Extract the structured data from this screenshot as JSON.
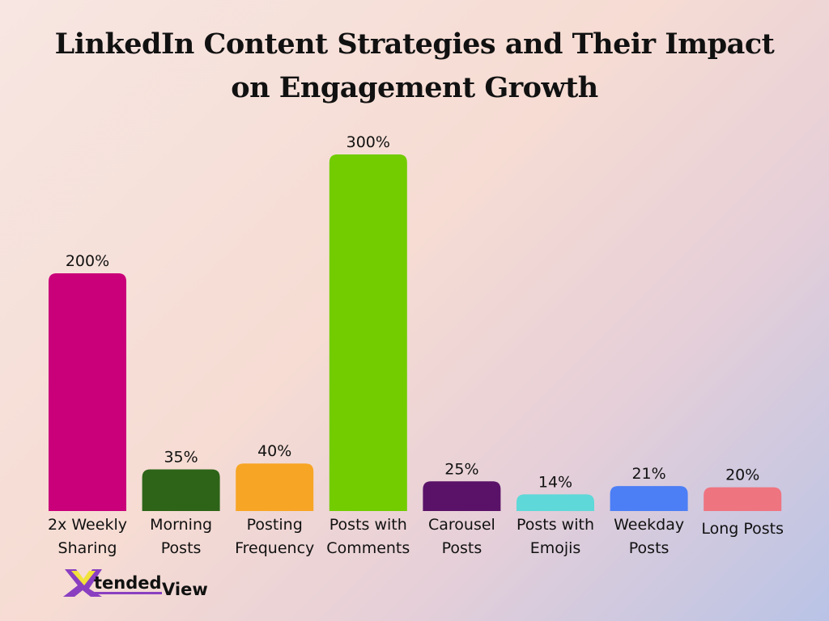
{
  "chart_data": {
    "type": "bar",
    "title": "LinkedIn Content Strategies and Their Impact on Engagement Growth",
    "title_lines": [
      "LinkedIn Content Strategies and Their Impact",
      "on Engagement Growth"
    ],
    "categories": [
      [
        "2x Weekly",
        "Sharing"
      ],
      [
        "Morning",
        "Posts"
      ],
      [
        "Posting",
        "Frequency"
      ],
      [
        "Posts with",
        "Comments"
      ],
      [
        "Carousel",
        "Posts"
      ],
      [
        "Posts with",
        "Emojis"
      ],
      [
        "Weekday",
        "Posts"
      ],
      [
        "Long Posts"
      ]
    ],
    "values": [
      200,
      35,
      40,
      300,
      25,
      14,
      21,
      20
    ],
    "data_labels": [
      "200%",
      "35%",
      "40%",
      "300%",
      "25%",
      "14%",
      "21%",
      "20%"
    ],
    "colors": [
      "#c9007a",
      "#2d6418",
      "#f7a524",
      "#72cc00",
      "#5a1268",
      "#5ed8d8",
      "#4c7ef5",
      "#ee7480"
    ],
    "ylim": [
      0,
      300
    ],
    "grid": false,
    "xlabel": "",
    "ylabel": ""
  },
  "logo": {
    "text": "XtendedView"
  }
}
